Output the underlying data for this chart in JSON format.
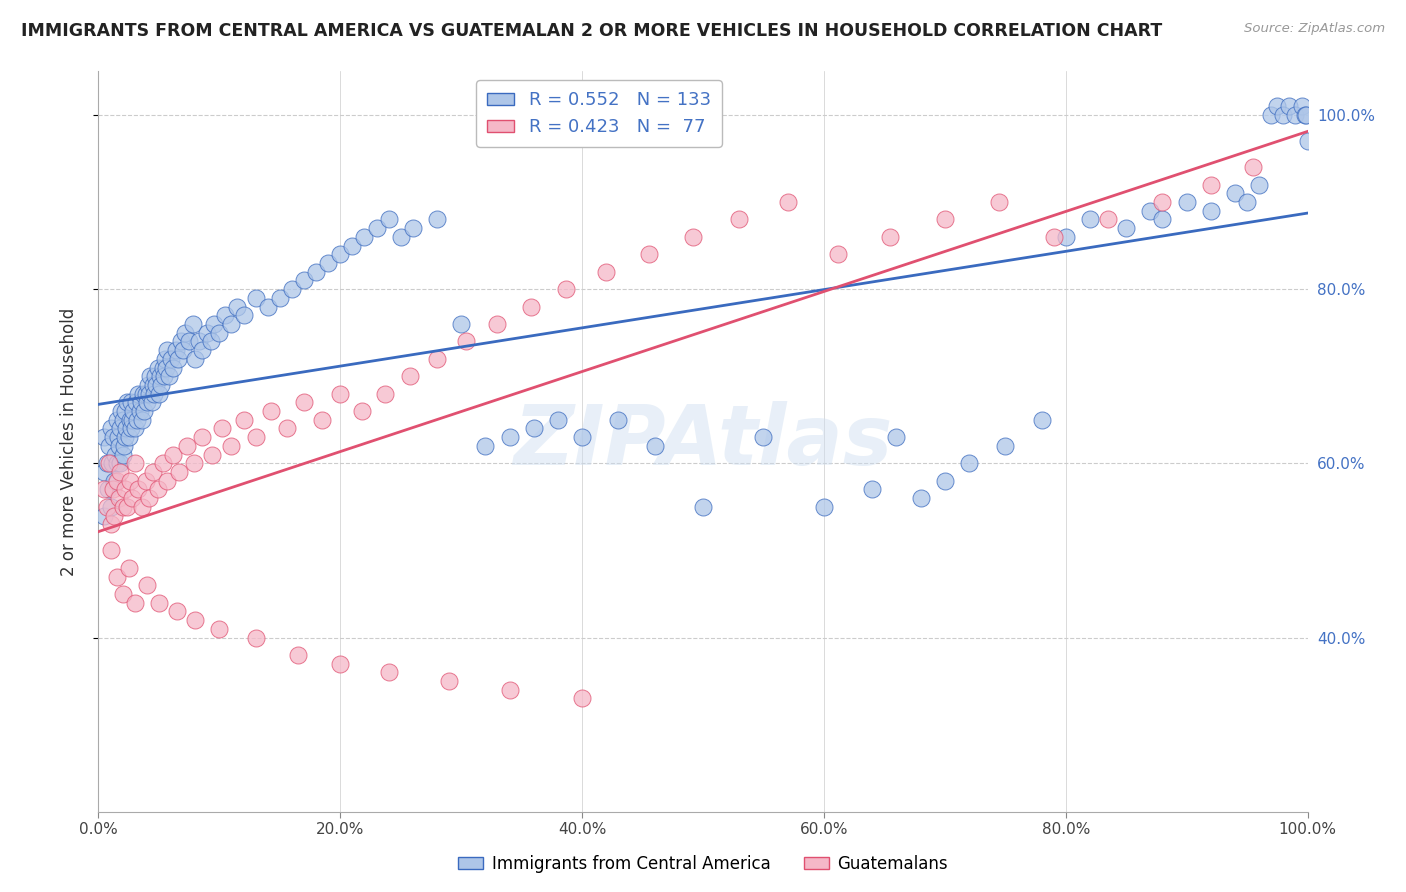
{
  "title": "IMMIGRANTS FROM CENTRAL AMERICA VS GUATEMALAN 2 OR MORE VEHICLES IN HOUSEHOLD CORRELATION CHART",
  "source": "Source: ZipAtlas.com",
  "ylabel": "2 or more Vehicles in Household",
  "blue_R": 0.552,
  "blue_N": 133,
  "pink_R": 0.423,
  "pink_N": 77,
  "blue_color": "#aec6e8",
  "pink_color": "#f5b8c8",
  "blue_line_color": "#3a6abf",
  "pink_line_color": "#e05070",
  "legend_label_blue": "Immigrants from Central America",
  "legend_label_pink": "Guatemalans",
  "watermark": "ZIPAtlas",
  "background_color": "#ffffff",
  "grid_color": "#cccccc",
  "blue_x": [
    0.005,
    0.005,
    0.005,
    0.007,
    0.008,
    0.009,
    0.01,
    0.01,
    0.011,
    0.012,
    0.013,
    0.014,
    0.015,
    0.015,
    0.016,
    0.017,
    0.018,
    0.018,
    0.019,
    0.02,
    0.02,
    0.021,
    0.022,
    0.022,
    0.023,
    0.024,
    0.025,
    0.026,
    0.027,
    0.027,
    0.028,
    0.029,
    0.03,
    0.031,
    0.032,
    0.033,
    0.034,
    0.035,
    0.036,
    0.037,
    0.038,
    0.039,
    0.04,
    0.041,
    0.042,
    0.043,
    0.044,
    0.045,
    0.046,
    0.047,
    0.048,
    0.049,
    0.05,
    0.051,
    0.052,
    0.053,
    0.054,
    0.055,
    0.056,
    0.057,
    0.058,
    0.06,
    0.062,
    0.064,
    0.066,
    0.068,
    0.07,
    0.072,
    0.075,
    0.078,
    0.08,
    0.083,
    0.086,
    0.09,
    0.093,
    0.096,
    0.1,
    0.105,
    0.11,
    0.115,
    0.12,
    0.13,
    0.14,
    0.15,
    0.16,
    0.17,
    0.18,
    0.19,
    0.2,
    0.21,
    0.22,
    0.23,
    0.24,
    0.25,
    0.26,
    0.28,
    0.3,
    0.32,
    0.34,
    0.36,
    0.38,
    0.4,
    0.43,
    0.46,
    0.5,
    0.55,
    0.6,
    0.64,
    0.66,
    0.68,
    0.7,
    0.72,
    0.75,
    0.78,
    0.8,
    0.82,
    0.85,
    0.87,
    0.88,
    0.9,
    0.92,
    0.94,
    0.95,
    0.96,
    0.97,
    0.975,
    0.98,
    0.985,
    0.99,
    0.995,
    0.998,
    0.999,
    1.0
  ],
  "blue_y": [
    0.54,
    0.59,
    0.63,
    0.6,
    0.57,
    0.62,
    0.55,
    0.64,
    0.6,
    0.63,
    0.58,
    0.61,
    0.6,
    0.65,
    0.63,
    0.62,
    0.64,
    0.6,
    0.66,
    0.61,
    0.65,
    0.62,
    0.63,
    0.66,
    0.64,
    0.67,
    0.63,
    0.65,
    0.64,
    0.67,
    0.65,
    0.66,
    0.64,
    0.67,
    0.65,
    0.68,
    0.66,
    0.67,
    0.65,
    0.68,
    0.66,
    0.68,
    0.67,
    0.69,
    0.68,
    0.7,
    0.67,
    0.69,
    0.68,
    0.7,
    0.69,
    0.71,
    0.68,
    0.7,
    0.69,
    0.71,
    0.7,
    0.72,
    0.71,
    0.73,
    0.7,
    0.72,
    0.71,
    0.73,
    0.72,
    0.74,
    0.73,
    0.75,
    0.74,
    0.76,
    0.72,
    0.74,
    0.73,
    0.75,
    0.74,
    0.76,
    0.75,
    0.77,
    0.76,
    0.78,
    0.77,
    0.79,
    0.78,
    0.79,
    0.8,
    0.81,
    0.82,
    0.83,
    0.84,
    0.85,
    0.86,
    0.87,
    0.88,
    0.86,
    0.87,
    0.88,
    0.76,
    0.62,
    0.63,
    0.64,
    0.65,
    0.63,
    0.65,
    0.62,
    0.55,
    0.63,
    0.55,
    0.57,
    0.63,
    0.56,
    0.58,
    0.6,
    0.62,
    0.65,
    0.86,
    0.88,
    0.87,
    0.89,
    0.88,
    0.9,
    0.89,
    0.91,
    0.9,
    0.92,
    1.0,
    1.01,
    1.0,
    1.01,
    1.0,
    1.01,
    1.0,
    1.0,
    0.97
  ],
  "pink_x": [
    0.005,
    0.007,
    0.009,
    0.01,
    0.012,
    0.013,
    0.015,
    0.017,
    0.018,
    0.02,
    0.022,
    0.024,
    0.026,
    0.028,
    0.03,
    0.033,
    0.036,
    0.039,
    0.042,
    0.045,
    0.049,
    0.053,
    0.057,
    0.062,
    0.067,
    0.073,
    0.079,
    0.086,
    0.094,
    0.102,
    0.11,
    0.12,
    0.13,
    0.143,
    0.156,
    0.17,
    0.185,
    0.2,
    0.218,
    0.237,
    0.258,
    0.28,
    0.304,
    0.33,
    0.358,
    0.387,
    0.42,
    0.455,
    0.492,
    0.53,
    0.57,
    0.612,
    0.655,
    0.7,
    0.745,
    0.79,
    0.835,
    0.88,
    0.92,
    0.955,
    0.01,
    0.015,
    0.02,
    0.025,
    0.03,
    0.04,
    0.05,
    0.065,
    0.08,
    0.1,
    0.13,
    0.165,
    0.2,
    0.24,
    0.29,
    0.34,
    0.4
  ],
  "pink_y": [
    0.57,
    0.55,
    0.6,
    0.53,
    0.57,
    0.54,
    0.58,
    0.56,
    0.59,
    0.55,
    0.57,
    0.55,
    0.58,
    0.56,
    0.6,
    0.57,
    0.55,
    0.58,
    0.56,
    0.59,
    0.57,
    0.6,
    0.58,
    0.61,
    0.59,
    0.62,
    0.6,
    0.63,
    0.61,
    0.64,
    0.62,
    0.65,
    0.63,
    0.66,
    0.64,
    0.67,
    0.65,
    0.68,
    0.66,
    0.68,
    0.7,
    0.72,
    0.74,
    0.76,
    0.78,
    0.8,
    0.82,
    0.84,
    0.86,
    0.88,
    0.9,
    0.84,
    0.86,
    0.88,
    0.9,
    0.86,
    0.88,
    0.9,
    0.92,
    0.94,
    0.5,
    0.47,
    0.45,
    0.48,
    0.44,
    0.46,
    0.44,
    0.43,
    0.42,
    0.41,
    0.4,
    0.38,
    0.37,
    0.36,
    0.35,
    0.34,
    0.33
  ]
}
